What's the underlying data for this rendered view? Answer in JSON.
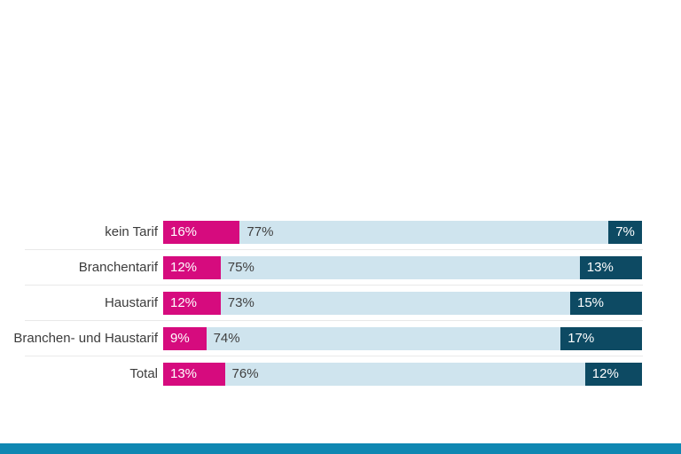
{
  "chart_data": {
    "type": "bar",
    "orientation": "horizontal",
    "stacked": true,
    "title": "",
    "xlabel": "",
    "ylabel": "",
    "xlim": [
      0,
      100
    ],
    "grid": false,
    "legend": "none",
    "value_suffix": "%",
    "categories": [
      "kein Tarif",
      "Branchentarif",
      "Haustarif",
      "Branchen- und Haustarif",
      "Total"
    ],
    "series": [
      {
        "name": "pink-segment",
        "color": "#d60b7e",
        "text_color": "#ffffff",
        "values": [
          16,
          12,
          12,
          9,
          13
        ]
      },
      {
        "name": "light-blue-segment",
        "color": "#cfe4ee",
        "text_color": "#3f3f3f",
        "values": [
          77,
          75,
          73,
          74,
          76
        ]
      },
      {
        "name": "dark-teal-segment",
        "color": "#0d4a63",
        "text_color": "#ffffff",
        "values": [
          7,
          13,
          15,
          17,
          12
        ]
      }
    ]
  },
  "colors": {
    "accent_pink": "#d60b7e",
    "accent_light_blue": "#cfe4ee",
    "accent_dark_teal": "#0d4a63",
    "footer_bar": "#0f87b2",
    "category_label": "#3c3c3c",
    "row_separator": "#e9e9e9"
  }
}
